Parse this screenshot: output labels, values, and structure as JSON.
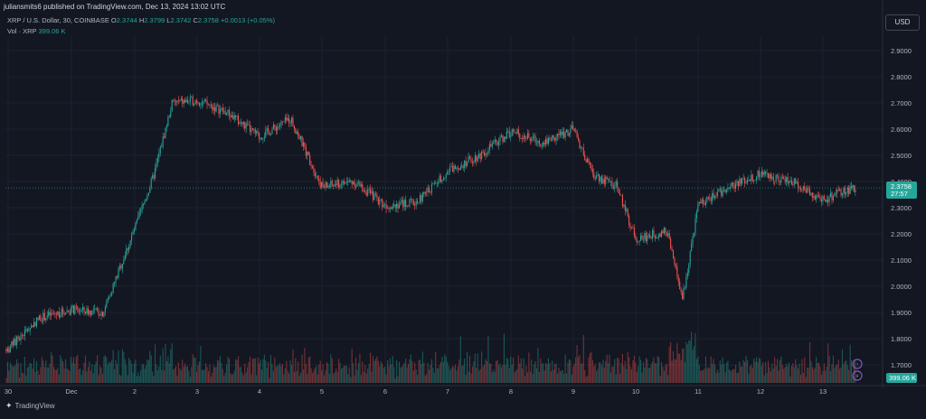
{
  "header": {
    "published": "juliansmits6 published on TradingView.com, Dec 13, 2024 13:02 UTC"
  },
  "legend": {
    "symbol": "XRP / U.S. Dollar, 30, COINBASE",
    "o_label": "O",
    "o_value": "2.3744",
    "h_label": "H",
    "h_value": "2.3799",
    "l_label": "L",
    "l_value": "2.3742",
    "c_label": "C",
    "c_value": "2.3758",
    "change": "+0.0013 (+0.05%)",
    "vol_label": "Vol · XRP",
    "vol_value": "399.06 K"
  },
  "currency_button": "USD",
  "price_tag": {
    "price": "2.3758",
    "countdown": "27:57"
  },
  "volume_tag": "399.06 K",
  "footer": {
    "brand": "TradingView"
  },
  "colors": {
    "background": "#131722",
    "up": "#26a69a",
    "down": "#ef5350",
    "grid": "#1e222d",
    "axis_text": "#b2b5be"
  },
  "chart_data": {
    "type": "candlestick",
    "interval": "30",
    "exchange": "COINBASE",
    "x_tick_labels": [
      "30",
      "Dec",
      "2",
      "3",
      "4",
      "5",
      "6",
      "7",
      "8",
      "9",
      "10",
      "11",
      "12",
      "13"
    ],
    "y_tick_labels": [
      "1.7000",
      "1.8000",
      "1.9000",
      "2.0000",
      "2.1000",
      "2.2000",
      "2.3000",
      "2.4000",
      "2.5000",
      "2.6000",
      "2.7000",
      "2.8000",
      "2.9000"
    ],
    "ylim": [
      1.67,
      2.95
    ],
    "grid": true,
    "approx_close_path": [
      {
        "x": "30",
        "y": 1.76
      },
      {
        "x": "30.5",
        "y": 1.88
      },
      {
        "x": "Dec",
        "y": 1.91
      },
      {
        "x": "1.5",
        "y": 1.9
      },
      {
        "x": "2",
        "y": 2.22
      },
      {
        "x": "2.3",
        "y": 2.42
      },
      {
        "x": "2.6",
        "y": 2.7
      },
      {
        "x": "3",
        "y": 2.71
      },
      {
        "x": "3.5",
        "y": 2.66
      },
      {
        "x": "4",
        "y": 2.57
      },
      {
        "x": "4.5",
        "y": 2.64
      },
      {
        "x": "5",
        "y": 2.38
      },
      {
        "x": "5.5",
        "y": 2.4
      },
      {
        "x": "6",
        "y": 2.31
      },
      {
        "x": "6.5",
        "y": 2.32
      },
      {
        "x": "7",
        "y": 2.44
      },
      {
        "x": "7.5",
        "y": 2.5
      },
      {
        "x": "8",
        "y": 2.59
      },
      {
        "x": "8.5",
        "y": 2.55
      },
      {
        "x": "9",
        "y": 2.6
      },
      {
        "x": "9.3",
        "y": 2.43
      },
      {
        "x": "9.7",
        "y": 2.38
      },
      {
        "x": "10",
        "y": 2.18
      },
      {
        "x": "10.5",
        "y": 2.21
      },
      {
        "x": "10.75",
        "y": 1.95
      },
      {
        "x": "11",
        "y": 2.31
      },
      {
        "x": "11.5",
        "y": 2.38
      },
      {
        "x": "12",
        "y": 2.43
      },
      {
        "x": "12.5",
        "y": 2.4
      },
      {
        "x": "13",
        "y": 2.33
      },
      {
        "x": "13.5",
        "y": 2.3758
      }
    ],
    "last_price": 2.3758,
    "last_volume": "399.06 K"
  }
}
